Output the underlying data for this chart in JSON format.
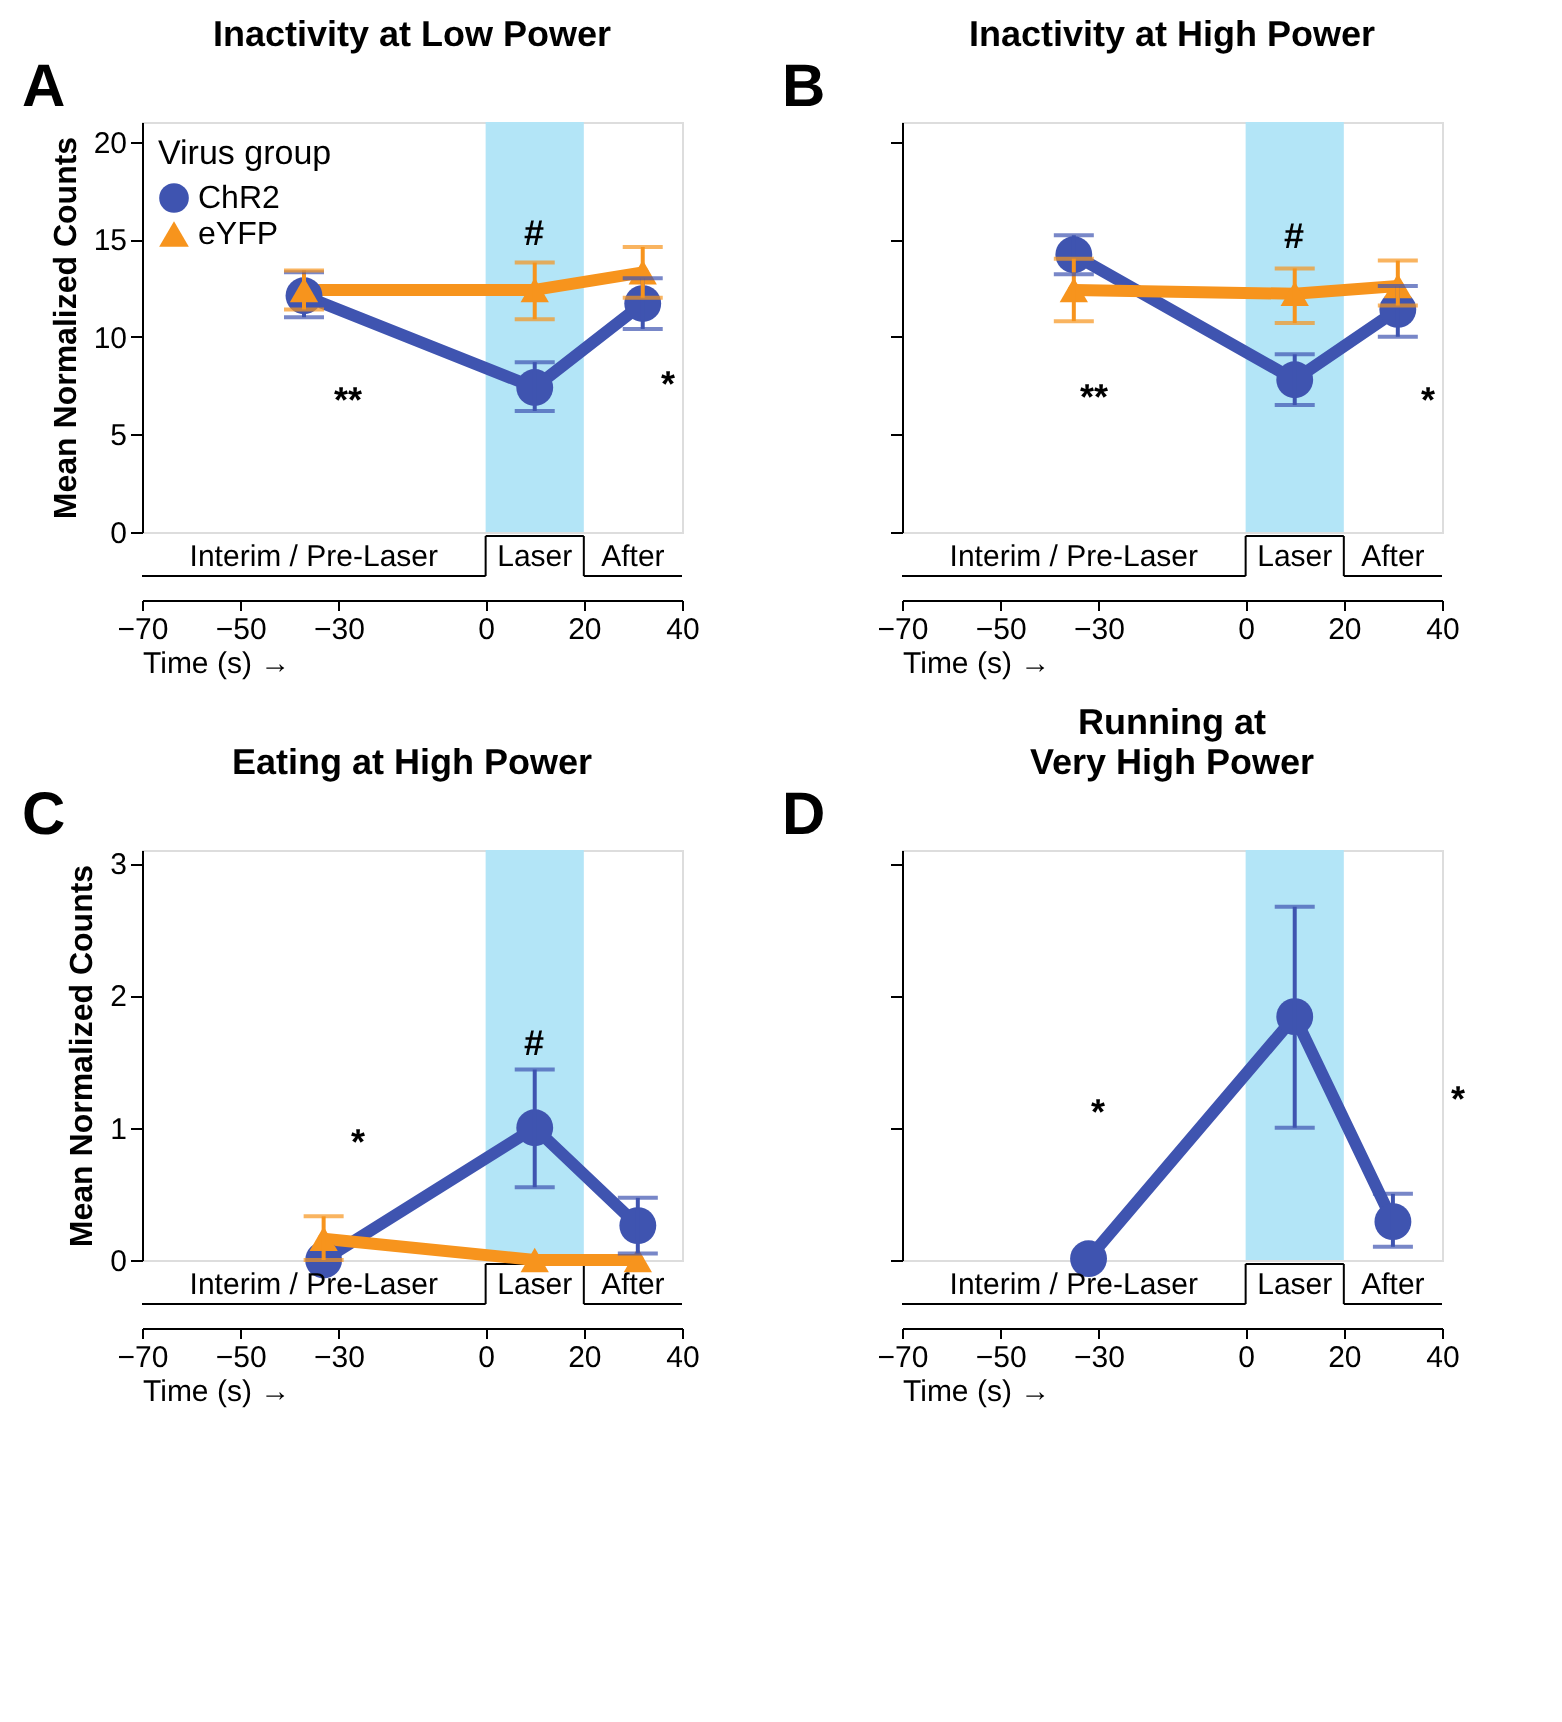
{
  "chart_data": [
    {
      "type": "line",
      "title": "Inactivity at Low Power",
      "ylabel": "Mean Normalized Counts",
      "xlabel": "Time (s) →",
      "legend_title": "Virus group",
      "legend": "top left",
      "marker": "circle",
      "line_style": "solid",
      "grid": false,
      "xlim": [
        -70,
        40
      ],
      "xticks": [
        -70,
        -50,
        -30,
        0,
        20,
        40
      ],
      "ylim": [
        0,
        21
      ],
      "yticks": [
        0,
        5,
        10,
        15,
        20
      ],
      "bands": [
        {
          "axis": "x",
          "from": 0,
          "to": 20,
          "label": "Laser",
          "color": "#b3e5f7"
        }
      ],
      "series": [
        {
          "name": "ChR2",
          "color": "#3f54b0",
          "marker": "circle",
          "x": [
            -37,
            10,
            32
          ],
          "values": [
            12.1,
            7.4,
            11.7
          ],
          "errors": [
            [
              11.0,
              13.3
            ],
            [
              6.2,
              8.7
            ],
            [
              10.4,
              13.0
            ]
          ]
        },
        {
          "name": "eYFP",
          "color": "#f7941d",
          "marker": "triangle",
          "x": [
            -37,
            10,
            32
          ],
          "values": [
            12.4,
            12.4,
            13.3
          ],
          "errors": [
            [
              11.4,
              13.4
            ],
            [
              10.9,
              13.8
            ],
            [
              12.0,
              14.6
            ]
          ]
        }
      ],
      "annotations": [
        "A",
        "Interim / Pre-Laser",
        "After",
        "#",
        "**",
        "*"
      ]
    },
    {
      "type": "line",
      "title": "Inactivity at High Power",
      "xlabel": "Time (s) →",
      "marker": "circle",
      "line_style": "solid",
      "grid": false,
      "tick_labels": "x",
      "xlim": [
        -70,
        40
      ],
      "xticks": [
        -70,
        -50,
        -30,
        0,
        20,
        40
      ],
      "ylim": [
        0,
        21
      ],
      "yticks": [
        0,
        5,
        10,
        15,
        20
      ],
      "bands": [
        {
          "axis": "x",
          "from": 0,
          "to": 20,
          "label": "Laser",
          "color": "#b3e5f7"
        }
      ],
      "series": [
        {
          "color": "#3f54b0",
          "marker": "circle",
          "x": [
            -35,
            10,
            31
          ],
          "values": [
            14.2,
            7.8,
            11.4
          ],
          "errors": [
            [
              13.2,
              15.2
            ],
            [
              6.5,
              9.1
            ],
            [
              10.0,
              12.6
            ]
          ]
        },
        {
          "color": "#f7941d",
          "marker": "triangle",
          "x": [
            -35,
            10,
            31
          ],
          "values": [
            12.4,
            12.2,
            12.6
          ],
          "errors": [
            [
              10.8,
              14.0
            ],
            [
              10.7,
              13.5
            ],
            [
              11.6,
              13.9
            ]
          ]
        }
      ],
      "annotations": [
        "B",
        "Interim / Pre-Laser",
        "After",
        "#",
        "**",
        "*"
      ]
    },
    {
      "type": "line",
      "title": "Eating at High Power",
      "ylabel": "Mean Normalized Counts",
      "xlabel": "Time (s) →",
      "marker": "circle",
      "line_style": "solid",
      "grid": false,
      "xlim": [
        -70,
        40
      ],
      "xticks": [
        -70,
        -50,
        -30,
        0,
        20,
        40
      ],
      "ylim": [
        0,
        3.1
      ],
      "yticks": [
        0,
        1,
        2,
        3
      ],
      "bands": [
        {
          "axis": "x",
          "from": 0,
          "to": 20,
          "label": "Laser",
          "color": "#b3e5f7"
        }
      ],
      "series": [
        {
          "color": "#3f54b0",
          "marker": "circle",
          "x": [
            -33,
            10,
            31
          ],
          "values": [
            0.0,
            1.0,
            0.26
          ],
          "errors": [
            null,
            [
              0.55,
              1.44
            ],
            [
              0.05,
              0.47
            ]
          ]
        },
        {
          "color": "#f7941d",
          "marker": "triangle",
          "x": [
            -33,
            10,
            31
          ],
          "values": [
            0.16,
            0.0,
            0.0
          ],
          "errors": [
            [
              0.0,
              0.33
            ],
            null,
            null
          ]
        }
      ],
      "annotations": [
        "C",
        "Interim / Pre-Laser",
        "After",
        "#",
        "*"
      ]
    },
    {
      "type": "line",
      "title": "Running at\nVery High Power",
      "xlabel": "Time (s) →",
      "marker": "circle",
      "line_style": "solid",
      "grid": false,
      "tick_labels": "x",
      "xlim": [
        -70,
        40
      ],
      "xticks": [
        -70,
        -50,
        -30,
        0,
        20,
        40
      ],
      "ylim": [
        0,
        3.1
      ],
      "yticks": [
        0,
        1,
        2,
        3
      ],
      "bands": [
        {
          "axis": "x",
          "from": 0,
          "to": 20,
          "label": "Laser",
          "color": "#b3e5f7"
        }
      ],
      "series": [
        {
          "color": "#3f54b0",
          "marker": "circle",
          "x": [
            -32,
            10,
            30
          ],
          "values": [
            0.01,
            1.84,
            0.29
          ],
          "errors": [
            null,
            [
              1.0,
              2.67
            ],
            [
              0.1,
              0.5
            ]
          ]
        }
      ],
      "annotations": [
        "D",
        "Interim / Pre-Laser",
        "After",
        "*",
        "*"
      ]
    }
  ]
}
